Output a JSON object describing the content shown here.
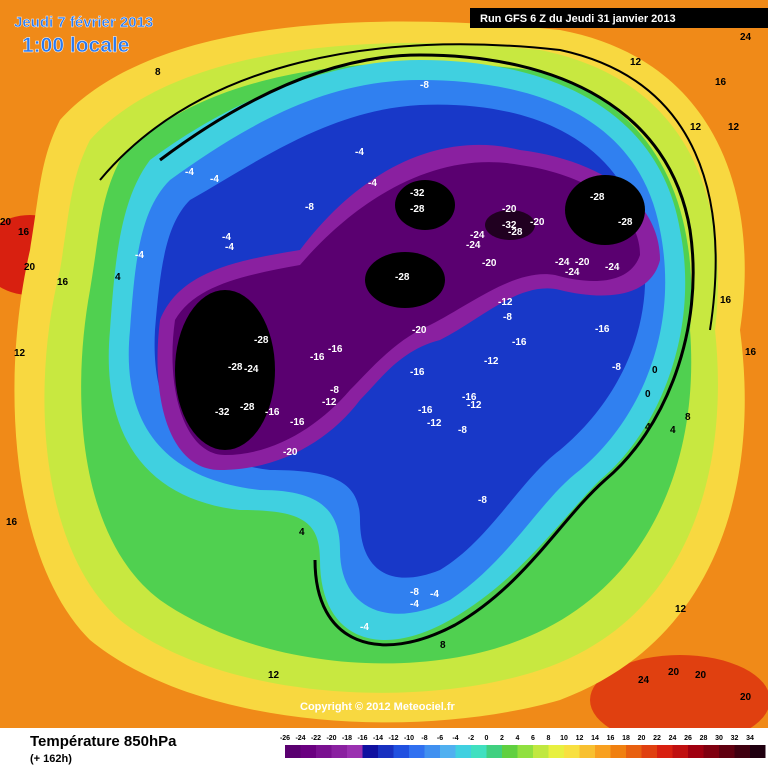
{
  "header": {
    "title": "Jeudi 7 février 2013",
    "subtitle": "1:00 locale",
    "run": "Run GFS 6 Z du Jeudi 31 janvier 2013",
    "copyright": "Copyright © 2012 Meteociel.fr"
  },
  "footer": {
    "title": "Température 850hPa",
    "subtitle": "(+ 162h)"
  },
  "legend": {
    "ticks": [
      -26,
      -24,
      -22,
      -20,
      -18,
      -16,
      -14,
      -12,
      -10,
      -8,
      -6,
      -4,
      -2,
      0,
      2,
      4,
      6,
      8,
      10,
      12,
      14,
      16,
      18,
      20,
      22,
      24,
      26,
      28,
      30,
      32,
      34
    ],
    "colors": [
      "#5a0070",
      "#6a0080",
      "#7a1090",
      "#8a20a0",
      "#9a30b0",
      "#1010a0",
      "#1830c0",
      "#2050e0",
      "#3070f0",
      "#4090f0",
      "#50b0f0",
      "#40d0e0",
      "#40e0c0",
      "#40d080",
      "#60d040",
      "#90e040",
      "#c0e840",
      "#e8f040",
      "#f8e040",
      "#f8c030",
      "#f8a020",
      "#f08010",
      "#e86010",
      "#e04010",
      "#d82010",
      "#c01010",
      "#a00010",
      "#800010",
      "#600010",
      "#400010",
      "#200010"
    ]
  },
  "map_labels": [
    "-8",
    "-4",
    "-4",
    "-4",
    "-4",
    "-4",
    "-4",
    "-8",
    "-4",
    "-32",
    "-28",
    "-20",
    "-24",
    "-20",
    "-32",
    "-28",
    "-28",
    "-28",
    "-24",
    "-24",
    "-24",
    "-20",
    "-24",
    "-20",
    "-28",
    "-20",
    "-12",
    "-8",
    "-16",
    "-16",
    "-28",
    "-24",
    "-28",
    "-32",
    "-28",
    "-16",
    "-16",
    "-16",
    "-8",
    "-12",
    "-20",
    "-16",
    "-12",
    "-16",
    "-16",
    "-12",
    "-16",
    "-12",
    "-8",
    "-8",
    "-8",
    "-4",
    "-4",
    "0",
    "0",
    "4",
    "4",
    "4",
    "8",
    "8",
    "8",
    "12",
    "12",
    "12",
    "12",
    "16",
    "16",
    "16",
    "16",
    "20",
    "20",
    "24",
    "20",
    "20",
    "20",
    "24",
    "4",
    "12",
    "12",
    "16",
    "16",
    "-4",
    "-8"
  ]
}
